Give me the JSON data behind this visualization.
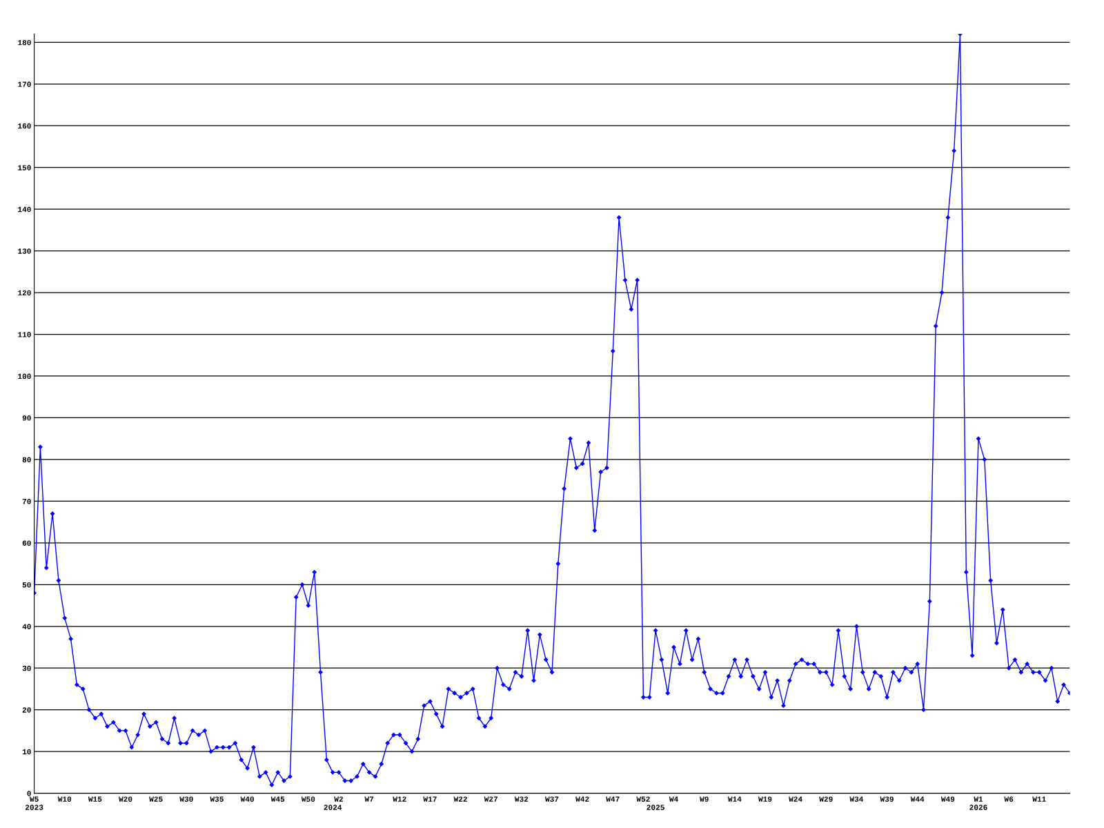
{
  "chart_data": {
    "type": "line",
    "categories": [
      "W5\n2023",
      null,
      null,
      null,
      null,
      "W10",
      null,
      null,
      null,
      null,
      "W15",
      null,
      null,
      null,
      null,
      "W20",
      null,
      null,
      null,
      null,
      "W25",
      null,
      null,
      null,
      null,
      "W30",
      null,
      null,
      null,
      null,
      "W35",
      null,
      null,
      null,
      null,
      "W40",
      null,
      null,
      null,
      null,
      "W45",
      null,
      null,
      null,
      null,
      "W50",
      null,
      null,
      null,
      "\n2024",
      "W2",
      null,
      null,
      null,
      null,
      "W7",
      null,
      null,
      null,
      null,
      "W12",
      null,
      null,
      null,
      null,
      "W17",
      null,
      null,
      null,
      null,
      "W22",
      null,
      null,
      null,
      null,
      "W27",
      null,
      null,
      null,
      null,
      "W32",
      null,
      null,
      null,
      null,
      "W37",
      null,
      null,
      null,
      null,
      "W42",
      null,
      null,
      null,
      null,
      "W47",
      null,
      null,
      null,
      null,
      "W52",
      null,
      "\n2025",
      null,
      null,
      "W4",
      null,
      null,
      null,
      null,
      "W9",
      null,
      null,
      null,
      null,
      "W14",
      null,
      null,
      null,
      null,
      "W19",
      null,
      null,
      null,
      null,
      "W24",
      null,
      null,
      null,
      null,
      "W29",
      null,
      null,
      null,
      null,
      "W34",
      null,
      null,
      null,
      null,
      "W39",
      null,
      null,
      null,
      null,
      "W44",
      null,
      null,
      null,
      null,
      "W49",
      null,
      null,
      null,
      null,
      "W1\n2026",
      null,
      null,
      null,
      null,
      "W6",
      null,
      null,
      null,
      null,
      "W11",
      null,
      null,
      null,
      null,
      null
    ],
    "series": [
      {
        "color": "#0000ff",
        "values": [
          48,
          83,
          54,
          67,
          51,
          42,
          37,
          26,
          25,
          20,
          18,
          19,
          16,
          17,
          15,
          15,
          11,
          14,
          19,
          16,
          17,
          13,
          12,
          18,
          12,
          12,
          15,
          14,
          15,
          10,
          11,
          11,
          11,
          12,
          8,
          6,
          11,
          4,
          5,
          2,
          5,
          3,
          4,
          47,
          50,
          45,
          53,
          29,
          8,
          5,
          5,
          3,
          3,
          4,
          7,
          5,
          4,
          7,
          12,
          14,
          14,
          12,
          10,
          13,
          21,
          22,
          19,
          16,
          25,
          24,
          23,
          24,
          25,
          18,
          16,
          18,
          30,
          26,
          25,
          29,
          28,
          39,
          27,
          38,
          32,
          29,
          55,
          73,
          85,
          78,
          79,
          84,
          63,
          77,
          78,
          106,
          138,
          123,
          116,
          123,
          23,
          23,
          39,
          32,
          24,
          35,
          31,
          39,
          32,
          37,
          29,
          25,
          24,
          24,
          28,
          32,
          28,
          32,
          28,
          25,
          29,
          23,
          27,
          21,
          27,
          31,
          32,
          31,
          31,
          29,
          29,
          26,
          39,
          28,
          25,
          40,
          29,
          25,
          29,
          28,
          23,
          29,
          27,
          30,
          29,
          31,
          20,
          46,
          112,
          120,
          138,
          154,
          182,
          53,
          33,
          85,
          80,
          51,
          36,
          44,
          30,
          32,
          29,
          31,
          29,
          29,
          27,
          30,
          22,
          26,
          24
        ]
      }
    ],
    "ylim": [
      0,
      182
    ],
    "yticks": [
      0,
      10,
      20,
      30,
      40,
      50,
      60,
      70,
      80,
      90,
      100,
      110,
      120,
      130,
      140,
      150,
      160,
      170,
      180
    ],
    "grid": "y",
    "marker": "diamond",
    "line_style": "solid"
  }
}
